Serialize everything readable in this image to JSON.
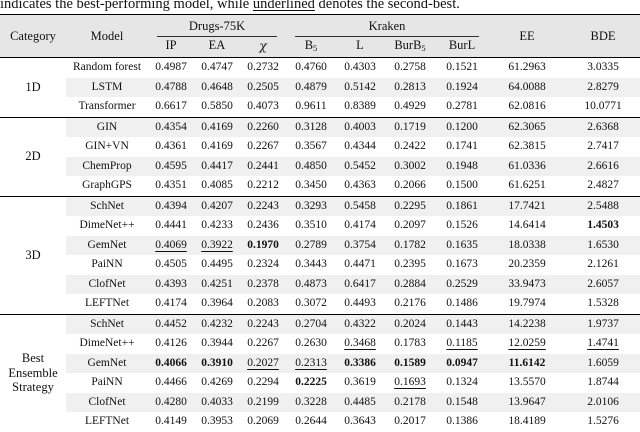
{
  "colors": {
    "header_bg": "#e6e6e6",
    "stripe_bg": "#f0f0f0",
    "rule": "#000000",
    "text": "#111111"
  },
  "caption": {
    "prefix": "indicates the best-performing model, while ",
    "underlined_word": "underlined",
    "suffix": " denotes the second-best."
  },
  "table": {
    "header": {
      "category": "Category",
      "model": "Model",
      "groups": [
        {
          "label": "Drugs-75K",
          "subcols": [
            {
              "name": "ip",
              "base": "IP"
            },
            {
              "name": "ea",
              "base": "EA"
            },
            {
              "name": "chi",
              "base": "χ",
              "italic": true
            }
          ]
        },
        {
          "label": "Kraken",
          "subcols": [
            {
              "name": "b5",
              "base": "B",
              "sub": "5"
            },
            {
              "name": "l",
              "base": "L"
            },
            {
              "name": "burb5",
              "base": "BurB",
              "sub": "5"
            },
            {
              "name": "burl",
              "base": "BurL"
            }
          ]
        }
      ],
      "ee": "EE",
      "bde": "BDE"
    },
    "blocks": [
      {
        "category": "1D",
        "category_lines": [
          "1D"
        ],
        "rows": [
          {
            "model": "Random forest",
            "values": [
              [
                "0.4987",
                "n"
              ],
              [
                "0.4747",
                "n"
              ],
              [
                "0.2732",
                "n"
              ],
              [
                "0.4760",
                "n"
              ],
              [
                "0.4303",
                "n"
              ],
              [
                "0.2758",
                "n"
              ],
              [
                "0.1521",
                "n"
              ],
              [
                "61.2963",
                "n"
              ],
              [
                "3.0335",
                "n"
              ]
            ]
          },
          {
            "model": "LSTM",
            "values": [
              [
                "0.4788",
                "n"
              ],
              [
                "0.4648",
                "n"
              ],
              [
                "0.2505",
                "n"
              ],
              [
                "0.4879",
                "n"
              ],
              [
                "0.5142",
                "n"
              ],
              [
                "0.2813",
                "n"
              ],
              [
                "0.1924",
                "n"
              ],
              [
                "64.0088",
                "n"
              ],
              [
                "2.8279",
                "n"
              ]
            ]
          },
          {
            "model": "Transformer",
            "values": [
              [
                "0.6617",
                "n"
              ],
              [
                "0.5850",
                "n"
              ],
              [
                "0.4073",
                "n"
              ],
              [
                "0.9611",
                "n"
              ],
              [
                "0.8389",
                "n"
              ],
              [
                "0.4929",
                "n"
              ],
              [
                "0.2781",
                "n"
              ],
              [
                "62.0816",
                "n"
              ],
              [
                "10.0771",
                "n"
              ]
            ]
          }
        ]
      },
      {
        "category": "2D",
        "category_lines": [
          "2D"
        ],
        "rows": [
          {
            "model": "GIN",
            "values": [
              [
                "0.4354",
                "n"
              ],
              [
                "0.4169",
                "n"
              ],
              [
                "0.2260",
                "n"
              ],
              [
                "0.3128",
                "n"
              ],
              [
                "0.4003",
                "n"
              ],
              [
                "0.1719",
                "n"
              ],
              [
                "0.1200",
                "n"
              ],
              [
                "62.3065",
                "n"
              ],
              [
                "2.6368",
                "n"
              ]
            ]
          },
          {
            "model": "GIN+VN",
            "values": [
              [
                "0.4361",
                "n"
              ],
              [
                "0.4169",
                "n"
              ],
              [
                "0.2267",
                "n"
              ],
              [
                "0.3567",
                "n"
              ],
              [
                "0.4344",
                "n"
              ],
              [
                "0.2422",
                "n"
              ],
              [
                "0.1741",
                "n"
              ],
              [
                "62.3815",
                "n"
              ],
              [
                "2.7417",
                "n"
              ]
            ]
          },
          {
            "model": "ChemProp",
            "values": [
              [
                "0.4595",
                "n"
              ],
              [
                "0.4417",
                "n"
              ],
              [
                "0.2441",
                "n"
              ],
              [
                "0.4850",
                "n"
              ],
              [
                "0.5452",
                "n"
              ],
              [
                "0.3002",
                "n"
              ],
              [
                "0.1948",
                "n"
              ],
              [
                "61.0336",
                "n"
              ],
              [
                "2.6616",
                "n"
              ]
            ]
          },
          {
            "model": "GraphGPS",
            "values": [
              [
                "0.4351",
                "n"
              ],
              [
                "0.4085",
                "n"
              ],
              [
                "0.2212",
                "n"
              ],
              [
                "0.3450",
                "n"
              ],
              [
                "0.4363",
                "n"
              ],
              [
                "0.2066",
                "n"
              ],
              [
                "0.1500",
                "n"
              ],
              [
                "61.6251",
                "n"
              ],
              [
                "2.4827",
                "n"
              ]
            ]
          }
        ]
      },
      {
        "category": "3D",
        "category_lines": [
          "3D"
        ],
        "rows": [
          {
            "model": "SchNet",
            "values": [
              [
                "0.4394",
                "n"
              ],
              [
                "0.4207",
                "n"
              ],
              [
                "0.2243",
                "n"
              ],
              [
                "0.3293",
                "n"
              ],
              [
                "0.5458",
                "n"
              ],
              [
                "0.2295",
                "n"
              ],
              [
                "0.1861",
                "n"
              ],
              [
                "17.7421",
                "n"
              ],
              [
                "2.5488",
                "n"
              ]
            ]
          },
          {
            "model": "DimeNet++",
            "values": [
              [
                "0.4441",
                "n"
              ],
              [
                "0.4233",
                "n"
              ],
              [
                "0.2436",
                "n"
              ],
              [
                "0.3510",
                "n"
              ],
              [
                "0.4174",
                "n"
              ],
              [
                "0.2097",
                "n"
              ],
              [
                "0.1526",
                "n"
              ],
              [
                "14.6414",
                "n"
              ],
              [
                "1.4503",
                "b"
              ]
            ]
          },
          {
            "model": "GemNet",
            "values": [
              [
                "0.4069",
                "u"
              ],
              [
                "0.3922",
                "u"
              ],
              [
                "0.1970",
                "b"
              ],
              [
                "0.2789",
                "n"
              ],
              [
                "0.3754",
                "n"
              ],
              [
                "0.1782",
                "n"
              ],
              [
                "0.1635",
                "n"
              ],
              [
                "18.0338",
                "n"
              ],
              [
                "1.6530",
                "n"
              ]
            ]
          },
          {
            "model": "PaiNN",
            "values": [
              [
                "0.4505",
                "n"
              ],
              [
                "0.4495",
                "n"
              ],
              [
                "0.2324",
                "n"
              ],
              [
                "0.3443",
                "n"
              ],
              [
                "0.4471",
                "n"
              ],
              [
                "0.2395",
                "n"
              ],
              [
                "0.1673",
                "n"
              ],
              [
                "20.2359",
                "n"
              ],
              [
                "2.1261",
                "n"
              ]
            ]
          },
          {
            "model": "ClofNet",
            "values": [
              [
                "0.4393",
                "n"
              ],
              [
                "0.4251",
                "n"
              ],
              [
                "0.2378",
                "n"
              ],
              [
                "0.4873",
                "n"
              ],
              [
                "0.6417",
                "n"
              ],
              [
                "0.2884",
                "n"
              ],
              [
                "0.2529",
                "n"
              ],
              [
                "33.9473",
                "n"
              ],
              [
                "2.6057",
                "n"
              ]
            ]
          },
          {
            "model": "LEFTNet",
            "values": [
              [
                "0.4174",
                "n"
              ],
              [
                "0.3964",
                "n"
              ],
              [
                "0.2083",
                "n"
              ],
              [
                "0.3072",
                "n"
              ],
              [
                "0.4493",
                "n"
              ],
              [
                "0.2176",
                "n"
              ],
              [
                "0.1486",
                "n"
              ],
              [
                "19.7974",
                "n"
              ],
              [
                "1.5328",
                "n"
              ]
            ]
          }
        ]
      },
      {
        "category": "Best Ensemble Strategy",
        "category_lines": [
          "Best",
          "Ensemble",
          "Strategy"
        ],
        "rows": [
          {
            "model": "SchNet",
            "values": [
              [
                "0.4452",
                "n"
              ],
              [
                "0.4232",
                "n"
              ],
              [
                "0.2243",
                "n"
              ],
              [
                "0.2704",
                "n"
              ],
              [
                "0.4322",
                "n"
              ],
              [
                "0.2024",
                "n"
              ],
              [
                "0.1443",
                "n"
              ],
              [
                "14.2238",
                "n"
              ],
              [
                "1.9737",
                "n"
              ]
            ]
          },
          {
            "model": "DimeNet++",
            "values": [
              [
                "0.4126",
                "n"
              ],
              [
                "0.3944",
                "n"
              ],
              [
                "0.2267",
                "n"
              ],
              [
                "0.2630",
                "n"
              ],
              [
                "0.3468",
                "u"
              ],
              [
                "0.1783",
                "n"
              ],
              [
                "0.1185",
                "u"
              ],
              [
                "12.0259",
                "u"
              ],
              [
                "1.4741",
                "u"
              ]
            ]
          },
          {
            "model": "GemNet",
            "values": [
              [
                "0.4066",
                "b"
              ],
              [
                "0.3910",
                "b"
              ],
              [
                "0.2027",
                "u"
              ],
              [
                "0.2313",
                "u"
              ],
              [
                "0.3386",
                "b"
              ],
              [
                "0.1589",
                "b"
              ],
              [
                "0.0947",
                "b"
              ],
              [
                "11.6142",
                "b"
              ],
              [
                "1.6059",
                "n"
              ]
            ]
          },
          {
            "model": "PaiNN",
            "values": [
              [
                "0.4466",
                "n"
              ],
              [
                "0.4269",
                "n"
              ],
              [
                "0.2294",
                "n"
              ],
              [
                "0.2225",
                "b"
              ],
              [
                "0.3619",
                "n"
              ],
              [
                "0.1693",
                "u"
              ],
              [
                "0.1324",
                "n"
              ],
              [
                "13.5570",
                "n"
              ],
              [
                "1.8744",
                "n"
              ]
            ]
          },
          {
            "model": "ClofNet",
            "values": [
              [
                "0.4280",
                "n"
              ],
              [
                "0.4033",
                "n"
              ],
              [
                "0.2199",
                "n"
              ],
              [
                "0.3228",
                "n"
              ],
              [
                "0.4485",
                "n"
              ],
              [
                "0.2178",
                "n"
              ],
              [
                "0.1548",
                "n"
              ],
              [
                "13.9647",
                "n"
              ],
              [
                "2.0106",
                "n"
              ]
            ]
          },
          {
            "model": "LEFTNet",
            "values": [
              [
                "0.4149",
                "n"
              ],
              [
                "0.3953",
                "n"
              ],
              [
                "0.2069",
                "n"
              ],
              [
                "0.2644",
                "n"
              ],
              [
                "0.3643",
                "n"
              ],
              [
                "0.2017",
                "n"
              ],
              [
                "0.1386",
                "n"
              ],
              [
                "18.4189",
                "n"
              ],
              [
                "1.5276",
                "n"
              ]
            ]
          }
        ]
      }
    ]
  }
}
